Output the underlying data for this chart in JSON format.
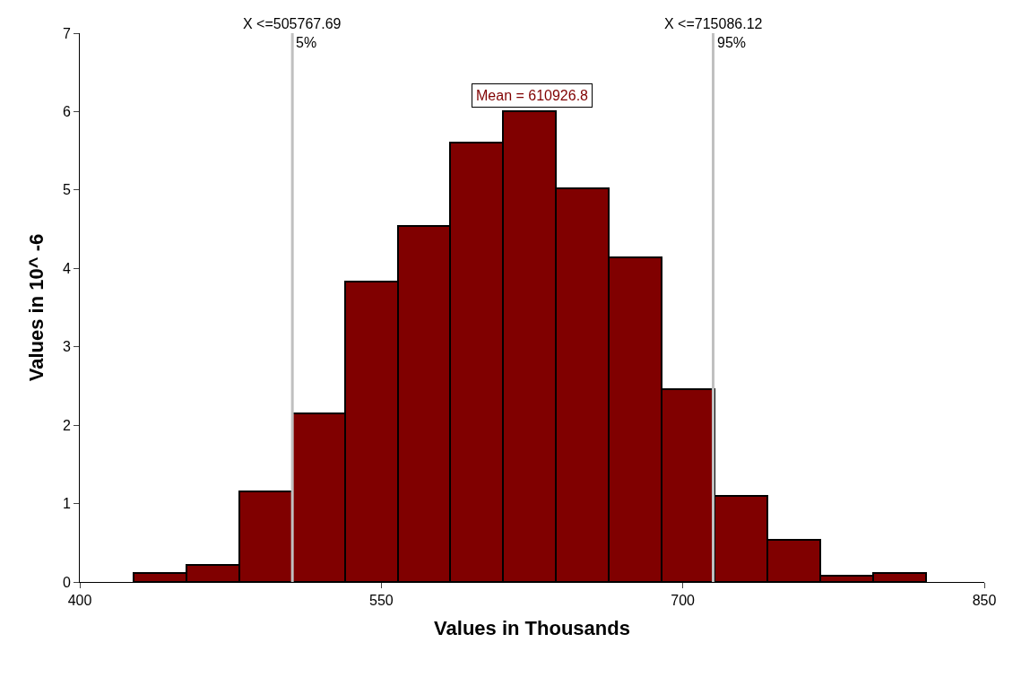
{
  "chart_data": {
    "type": "histogram",
    "xlabel": "Values in Thousands",
    "ylabel": "Values in 10^ -6",
    "bins": [
      426.6,
      452.9,
      479.2,
      505.5,
      531.8,
      558.1,
      584.4,
      610.7,
      637.0,
      663.3,
      689.6,
      715.9,
      742.2,
      768.5,
      794.8,
      821.1
    ],
    "values": [
      0.12,
      0.22,
      1.16,
      2.15,
      3.83,
      4.54,
      5.6,
      6.0,
      5.02,
      4.14,
      2.46,
      1.1,
      0.54,
      0.08,
      0.12
    ],
    "color": "#800000",
    "xlim": [
      400,
      850
    ],
    "xticks": [
      400,
      550,
      700,
      850
    ],
    "ylim": [
      0,
      7
    ],
    "yticks": [
      0,
      1,
      2,
      3,
      4,
      5,
      6,
      7
    ],
    "ref_lines": [
      {
        "axis": "x",
        "value": 505.77,
        "color": "#c0c0c0"
      },
      {
        "axis": "x",
        "value": 715.09,
        "color": "#c0c0c0"
      }
    ],
    "annotations": [
      "X <=505767.69",
      "5%",
      "X <=715086.12",
      "95%",
      "Mean = 610926.8"
    ]
  }
}
